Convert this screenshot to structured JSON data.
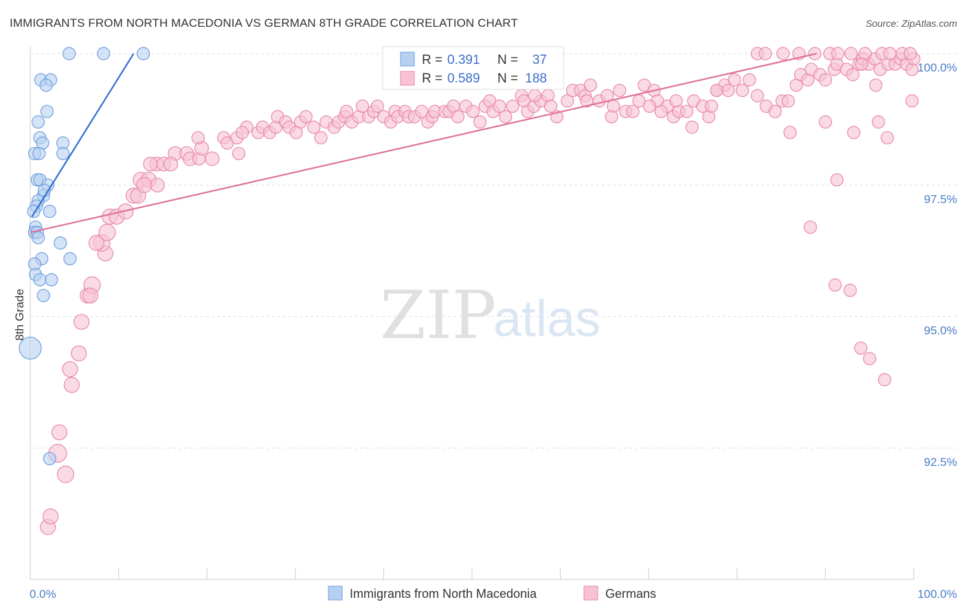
{
  "chart_data": {
    "type": "scatter",
    "title": "IMMIGRANTS FROM NORTH MACEDONIA VS GERMAN 8TH GRADE CORRELATION CHART",
    "source": "Source: ZipAtlas.com",
    "ylabel": "8th Grade",
    "xlabel": "",
    "xlim": [
      0,
      100
    ],
    "ylim": [
      90.3,
      100.4
    ],
    "x_tick_labels": [
      "0.0%",
      "100.0%"
    ],
    "y_ticks": [
      {
        "value": 100.0,
        "label": "100.0%"
      },
      {
        "value": 97.5,
        "label": "97.5%"
      },
      {
        "value": 95.0,
        "label": "95.0%"
      },
      {
        "value": 92.5,
        "label": "92.5%"
      }
    ],
    "watermark": {
      "zip": "ZIP",
      "atlas": "atlas"
    },
    "stats": {
      "r_label": "R =",
      "n_label": "N =",
      "blue_r": "0.391",
      "blue_n": "37",
      "pink_r": "0.589",
      "pink_n": "188"
    },
    "series": [
      {
        "name": "Immigrants from North Macedonia",
        "color": "#6f9fe0",
        "fill": "#b8d0f0",
        "trend": {
          "x0": 0.2,
          "y0": 96.9,
          "x1": 11.7,
          "y1": 100.0,
          "color": "#2f6fcf"
        },
        "points": [
          [
            4.4,
            100.0
          ],
          [
            8.3,
            100.0
          ],
          [
            12.8,
            100.0
          ],
          [
            1.2,
            99.5
          ],
          [
            2.3,
            99.5
          ],
          [
            1.8,
            99.4
          ],
          [
            1.9,
            98.9
          ],
          [
            0.9,
            98.7
          ],
          [
            1.1,
            98.4
          ],
          [
            3.7,
            98.3
          ],
          [
            1.4,
            98.3
          ],
          [
            0.5,
            98.1
          ],
          [
            1.0,
            98.1
          ],
          [
            3.7,
            98.1
          ],
          [
            0.8,
            97.6
          ],
          [
            1.1,
            97.6
          ],
          [
            2.0,
            97.5
          ],
          [
            1.5,
            97.3
          ],
          [
            0.9,
            97.2
          ],
          [
            0.7,
            97.1
          ],
          [
            0.4,
            97.0
          ],
          [
            2.2,
            97.0
          ],
          [
            0.6,
            96.7
          ],
          [
            0.5,
            96.6
          ],
          [
            3.4,
            96.4
          ],
          [
            4.5,
            96.1
          ],
          [
            1.3,
            96.1
          ],
          [
            0.5,
            96.0
          ],
          [
            0.6,
            95.8
          ],
          [
            1.1,
            95.7
          ],
          [
            2.4,
            95.7
          ],
          [
            1.5,
            95.4
          ],
          [
            0.0,
            94.4
          ],
          [
            2.2,
            92.3
          ],
          [
            0.8,
            96.6
          ],
          [
            1.6,
            97.4
          ],
          [
            0.9,
            96.5
          ]
        ],
        "sizes": [
          9,
          9,
          9,
          9,
          9,
          9,
          9,
          9,
          9,
          9,
          9,
          9,
          9,
          9,
          9,
          9,
          9,
          9,
          9,
          9,
          9,
          9,
          9,
          9,
          9,
          9,
          9,
          9,
          9,
          9,
          9,
          9,
          16,
          9,
          9,
          9,
          9
        ]
      },
      {
        "name": "Germans",
        "color": "#e889a8",
        "fill": "#f7c3d4",
        "trend": {
          "x0": 0.0,
          "y0": 96.6,
          "x1": 89.0,
          "y1": 100.0,
          "color": "#e0719a"
        },
        "points": [
          [
            2.0,
            91.0
          ],
          [
            2.3,
            91.2
          ],
          [
            4.0,
            92.0
          ],
          [
            3.1,
            92.4
          ],
          [
            3.3,
            92.8
          ],
          [
            4.7,
            93.7
          ],
          [
            5.5,
            94.3
          ],
          [
            4.5,
            94.0
          ],
          [
            5.8,
            94.9
          ],
          [
            6.5,
            95.4
          ],
          [
            7.0,
            95.6
          ],
          [
            6.8,
            95.4
          ],
          [
            8.5,
            96.2
          ],
          [
            8.1,
            96.4
          ],
          [
            7.5,
            96.4
          ],
          [
            8.7,
            96.6
          ],
          [
            9.0,
            96.9
          ],
          [
            9.8,
            96.9
          ],
          [
            10.8,
            97.0
          ],
          [
            11.7,
            97.3
          ],
          [
            12.2,
            97.3
          ],
          [
            12.5,
            97.6
          ],
          [
            13.4,
            97.6
          ],
          [
            12.9,
            97.5
          ],
          [
            14.4,
            97.5
          ],
          [
            14.3,
            97.9
          ],
          [
            13.6,
            97.9
          ],
          [
            15.1,
            97.9
          ],
          [
            16.4,
            98.1
          ],
          [
            15.9,
            97.9
          ],
          [
            17.7,
            98.1
          ],
          [
            18.1,
            98.0
          ],
          [
            19.1,
            98.0
          ],
          [
            19.4,
            98.2
          ],
          [
            20.6,
            98.0
          ],
          [
            19.0,
            98.4
          ],
          [
            21.9,
            98.4
          ],
          [
            22.3,
            98.3
          ],
          [
            23.4,
            98.4
          ],
          [
            23.6,
            98.1
          ],
          [
            24.5,
            98.6
          ],
          [
            24.0,
            98.5
          ],
          [
            25.8,
            98.5
          ],
          [
            26.3,
            98.6
          ],
          [
            27.1,
            98.5
          ],
          [
            27.8,
            98.6
          ],
          [
            28.0,
            98.8
          ],
          [
            28.9,
            98.7
          ],
          [
            29.3,
            98.6
          ],
          [
            30.1,
            98.5
          ],
          [
            30.6,
            98.7
          ],
          [
            31.2,
            98.8
          ],
          [
            32.1,
            98.6
          ],
          [
            32.9,
            98.4
          ],
          [
            33.5,
            98.7
          ],
          [
            34.4,
            98.6
          ],
          [
            34.9,
            98.7
          ],
          [
            35.6,
            98.8
          ],
          [
            35.8,
            98.9
          ],
          [
            36.4,
            98.7
          ],
          [
            37.2,
            98.8
          ],
          [
            37.6,
            99.0
          ],
          [
            38.3,
            98.8
          ],
          [
            38.9,
            98.9
          ],
          [
            39.3,
            99.0
          ],
          [
            40.0,
            98.8
          ],
          [
            40.8,
            98.7
          ],
          [
            41.3,
            98.9
          ],
          [
            41.6,
            98.8
          ],
          [
            42.4,
            98.9
          ],
          [
            42.8,
            98.8
          ],
          [
            43.5,
            98.8
          ],
          [
            44.3,
            98.9
          ],
          [
            45.0,
            98.7
          ],
          [
            45.5,
            98.8
          ],
          [
            45.8,
            98.9
          ],
          [
            46.9,
            98.9
          ],
          [
            47.4,
            98.9
          ],
          [
            47.9,
            99.0
          ],
          [
            48.4,
            98.8
          ],
          [
            49.3,
            99.0
          ],
          [
            50.1,
            98.9
          ],
          [
            50.9,
            98.7
          ],
          [
            51.5,
            99.0
          ],
          [
            52.0,
            99.1
          ],
          [
            52.4,
            98.9
          ],
          [
            53.1,
            99.0
          ],
          [
            53.8,
            98.8
          ],
          [
            54.6,
            99.0
          ],
          [
            55.6,
            99.2
          ],
          [
            55.9,
            99.1
          ],
          [
            56.3,
            98.9
          ],
          [
            57.0,
            99.0
          ],
          [
            57.8,
            99.1
          ],
          [
            58.6,
            99.2
          ],
          [
            58.9,
            99.0
          ],
          [
            59.6,
            98.8
          ],
          [
            60.8,
            99.1
          ],
          [
            61.4,
            99.3
          ],
          [
            62.3,
            99.3
          ],
          [
            62.8,
            99.2
          ],
          [
            63.4,
            99.4
          ],
          [
            64.4,
            99.1
          ],
          [
            65.3,
            99.2
          ],
          [
            66.0,
            99.0
          ],
          [
            66.7,
            99.3
          ],
          [
            67.4,
            98.9
          ],
          [
            68.2,
            98.9
          ],
          [
            68.9,
            99.1
          ],
          [
            69.5,
            99.4
          ],
          [
            70.6,
            99.3
          ],
          [
            71.0,
            99.1
          ],
          [
            72.1,
            99.0
          ],
          [
            72.8,
            98.8
          ],
          [
            73.4,
            98.9
          ],
          [
            74.3,
            98.9
          ],
          [
            75.1,
            99.1
          ],
          [
            76.1,
            99.0
          ],
          [
            76.8,
            98.8
          ],
          [
            77.1,
            99.0
          ],
          [
            77.7,
            99.3
          ],
          [
            78.6,
            99.4
          ],
          [
            79.0,
            99.3
          ],
          [
            79.7,
            99.5
          ],
          [
            80.6,
            99.3
          ],
          [
            81.4,
            99.5
          ],
          [
            82.3,
            99.2
          ],
          [
            83.3,
            99.0
          ],
          [
            84.3,
            98.9
          ],
          [
            85.1,
            99.1
          ],
          [
            85.8,
            99.1
          ],
          [
            86.7,
            99.4
          ],
          [
            87.2,
            99.6
          ],
          [
            88.0,
            99.5
          ],
          [
            88.4,
            99.7
          ],
          [
            89.4,
            99.6
          ],
          [
            90.0,
            99.5
          ],
          [
            91.0,
            99.7
          ],
          [
            91.3,
            99.8
          ],
          [
            92.4,
            99.7
          ],
          [
            93.1,
            99.6
          ],
          [
            93.8,
            99.8
          ],
          [
            94.2,
            99.9
          ],
          [
            94.9,
            99.8
          ],
          [
            95.6,
            99.9
          ],
          [
            96.2,
            99.7
          ],
          [
            97.1,
            99.8
          ],
          [
            97.9,
            99.8
          ],
          [
            98.5,
            99.9
          ],
          [
            99.2,
            99.8
          ],
          [
            99.8,
            99.7
          ],
          [
            100.0,
            99.9
          ],
          [
            82.3,
            100.0
          ],
          [
            83.2,
            100.0
          ],
          [
            85.2,
            100.0
          ],
          [
            87.0,
            100.0
          ],
          [
            88.8,
            100.0
          ],
          [
            90.5,
            100.0
          ],
          [
            91.4,
            100.0
          ],
          [
            92.9,
            100.0
          ],
          [
            94.5,
            100.0
          ],
          [
            96.4,
            100.0
          ],
          [
            97.3,
            100.0
          ],
          [
            98.7,
            100.0
          ],
          [
            99.6,
            100.0
          ],
          [
            94.1,
            99.8
          ],
          [
            96.0,
            98.7
          ],
          [
            97.0,
            98.4
          ],
          [
            91.3,
            97.6
          ],
          [
            91.1,
            95.6
          ],
          [
            92.8,
            95.5
          ],
          [
            94.0,
            94.4
          ],
          [
            95.0,
            94.2
          ],
          [
            96.7,
            93.8
          ],
          [
            99.8,
            99.1
          ],
          [
            95.7,
            99.4
          ],
          [
            93.2,
            98.5
          ],
          [
            90.0,
            98.7
          ],
          [
            86.0,
            98.5
          ],
          [
            74.9,
            98.6
          ],
          [
            71.4,
            98.9
          ],
          [
            88.3,
            96.7
          ],
          [
            77.7,
            99.3
          ],
          [
            73.1,
            99.1
          ],
          [
            70.1,
            99.0
          ],
          [
            65.8,
            98.8
          ],
          [
            63.0,
            99.1
          ],
          [
            57.1,
            99.2
          ]
        ],
        "sizes": [
          11,
          11,
          12,
          13,
          11,
          11,
          11,
          11,
          11,
          11,
          12,
          11,
          11,
          12,
          11,
          12,
          11,
          11,
          11,
          11,
          11,
          11,
          11,
          11,
          10,
          10,
          10,
          10,
          10,
          10,
          10,
          10,
          9,
          10,
          10,
          9,
          9,
          9,
          9,
          9,
          9,
          9,
          9,
          9,
          9,
          9,
          9,
          9,
          9,
          9,
          9,
          9,
          9,
          9,
          9,
          9,
          9,
          9,
          9,
          9,
          9,
          9,
          9,
          9,
          9,
          9,
          9,
          9,
          9,
          9,
          9,
          9,
          9,
          9,
          9,
          9,
          9,
          9,
          9,
          9,
          9,
          9,
          9,
          9,
          9,
          9,
          9,
          9,
          9,
          9,
          9,
          9,
          9,
          9,
          9,
          9,
          9,
          9,
          9,
          9,
          9,
          9,
          9,
          9,
          9,
          9,
          9,
          9,
          9,
          9,
          9,
          9,
          9,
          9,
          9,
          9,
          9,
          9,
          9,
          9,
          9,
          9,
          9,
          9,
          9,
          9,
          9,
          9,
          9,
          9,
          9,
          9,
          9,
          9,
          9,
          9,
          9,
          9,
          9,
          9,
          9,
          9,
          9,
          9,
          9,
          9,
          9,
          9,
          9,
          9,
          9,
          9,
          9,
          9,
          9,
          9,
          9,
          9,
          9,
          9,
          9,
          9,
          9,
          9,
          9,
          9,
          9,
          9,
          9,
          9,
          9,
          9,
          9,
          9,
          9,
          9,
          9,
          9,
          9,
          9,
          9,
          9,
          9,
          9,
          9,
          9,
          9,
          9
        ]
      }
    ]
  }
}
